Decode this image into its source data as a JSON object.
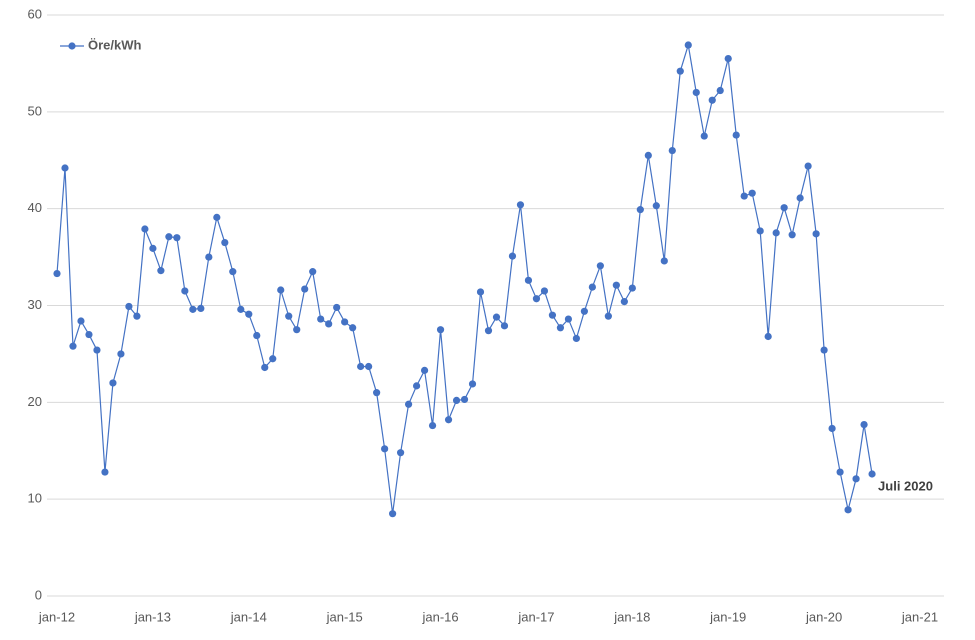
{
  "chart_data": {
    "type": "line",
    "categories": [
      "jan-12",
      null,
      null,
      null,
      null,
      null,
      null,
      null,
      null,
      null,
      null,
      null,
      "jan-13",
      null,
      null,
      null,
      null,
      null,
      null,
      null,
      null,
      null,
      null,
      null,
      "jan-14",
      null,
      null,
      null,
      null,
      null,
      null,
      null,
      null,
      null,
      null,
      null,
      "jan-15",
      null,
      null,
      null,
      null,
      null,
      null,
      null,
      null,
      null,
      null,
      null,
      "jan-16",
      null,
      null,
      null,
      null,
      null,
      null,
      null,
      null,
      null,
      null,
      null,
      "jan-17",
      null,
      null,
      null,
      null,
      null,
      null,
      null,
      null,
      null,
      null,
      null,
      "jan-18",
      null,
      null,
      null,
      null,
      null,
      null,
      null,
      null,
      null,
      null,
      null,
      "jan-19",
      null,
      null,
      null,
      null,
      null,
      null,
      null,
      null,
      null,
      null,
      null,
      "jan-20",
      null,
      null,
      null,
      null,
      null,
      null,
      null,
      null,
      null,
      null,
      null,
      "jan-21"
    ],
    "series": [
      {
        "name": "Öre/kWh",
        "color": "#4472c4",
        "values": [
          33.3,
          44.2,
          25.8,
          28.4,
          27.0,
          25.4,
          12.8,
          22.0,
          25.0,
          29.9,
          28.9,
          37.9,
          35.9,
          33.6,
          37.1,
          37.0,
          31.5,
          29.6,
          29.7,
          35.0,
          39.1,
          36.5,
          33.5,
          29.6,
          29.1,
          26.9,
          23.6,
          24.5,
          31.6,
          28.9,
          27.5,
          31.7,
          33.5,
          28.6,
          28.1,
          29.8,
          28.3,
          27.7,
          23.7,
          23.7,
          21.0,
          15.2,
          8.5,
          14.8,
          19.8,
          21.7,
          23.3,
          17.6,
          27.5,
          18.2,
          20.2,
          20.3,
          21.9,
          31.4,
          27.4,
          28.8,
          27.9,
          35.1,
          40.4,
          32.6,
          30.7,
          31.5,
          29.0,
          27.7,
          28.6,
          26.6,
          29.4,
          31.9,
          34.1,
          28.9,
          32.1,
          30.4,
          31.8,
          39.9,
          45.5,
          40.3,
          34.6,
          46.0,
          54.2,
          56.9,
          52.0,
          47.5,
          51.2,
          52.2,
          55.5,
          47.6,
          41.3,
          41.6,
          37.7,
          26.8,
          37.5,
          40.1,
          37.3,
          41.1,
          44.4,
          37.4,
          25.4,
          17.3,
          12.8,
          8.9,
          12.1,
          17.7,
          12.6,
          null,
          null,
          null,
          null,
          null,
          null
        ]
      }
    ],
    "annotation": "Juli 2020",
    "ylim": [
      0,
      60
    ],
    "yticks": [
      0,
      10,
      20,
      30,
      40,
      50,
      60
    ],
    "grid": true
  }
}
